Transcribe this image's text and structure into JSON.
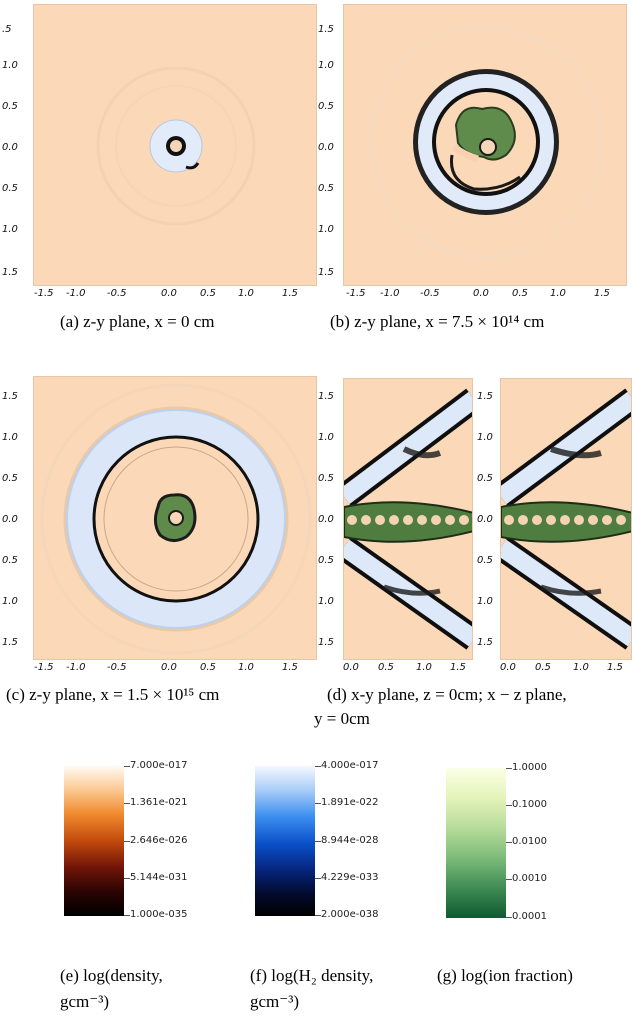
{
  "ticks": {
    "y": [
      "1.5",
      "1.0",
      "0.5",
      "0.0",
      "-0.5",
      "-1.0",
      "-1.5"
    ],
    "x": [
      "-1.5",
      "-1.0",
      "-0.5",
      "0.0",
      "0.5",
      "1.0",
      "1.5"
    ],
    "x_half": [
      "0.0",
      "0.5",
      "1.0",
      "1.5"
    ],
    "y_clip_a": [
      ".5",
      "1.0",
      "0.5",
      "0.0",
      "0.5",
      "1.0",
      "1.5"
    ],
    "y_clip_b": [
      "1.5",
      "1.0",
      "0.5",
      "0.0",
      "0.5",
      "1.0",
      "1.5"
    ]
  },
  "captions": {
    "a": "(a) z-y plane, x = 0 cm",
    "b": "(b) z-y plane, x = 7.5 × 10¹⁴ cm",
    "c": "(c) z-y plane, x = 1.5 × 10¹⁵ cm",
    "d_line1": "(d) x-y plane, z = 0cm; x − z plane,",
    "d_line2": "y = 0cm",
    "e_line1": "(e)        log(density,",
    "e_line2": "gcm⁻³)",
    "f_line1": "(f)   log(H₂   density,",
    "f_line2": "gcm⁻³)",
    "g_line1": "(g) log(ion fraction)"
  },
  "colorbars": {
    "density": [
      "7.000e-017",
      "1.361e-021",
      "2.646e-026",
      "5.144e-031",
      "1.000e-035"
    ],
    "h2": [
      "4.000e-017",
      "1.891e-022",
      "8.944e-028",
      "4.229e-033",
      "2.000e-038"
    ],
    "ion": [
      "1.0000",
      "0.1000",
      "0.0100",
      "0.0010",
      "0.0001"
    ]
  },
  "colors": {
    "background": "#fbd9b8",
    "ring": "#dfe9f8",
    "ring_edge": "#0d0d0d",
    "ion_green": "#5d8a4a"
  }
}
